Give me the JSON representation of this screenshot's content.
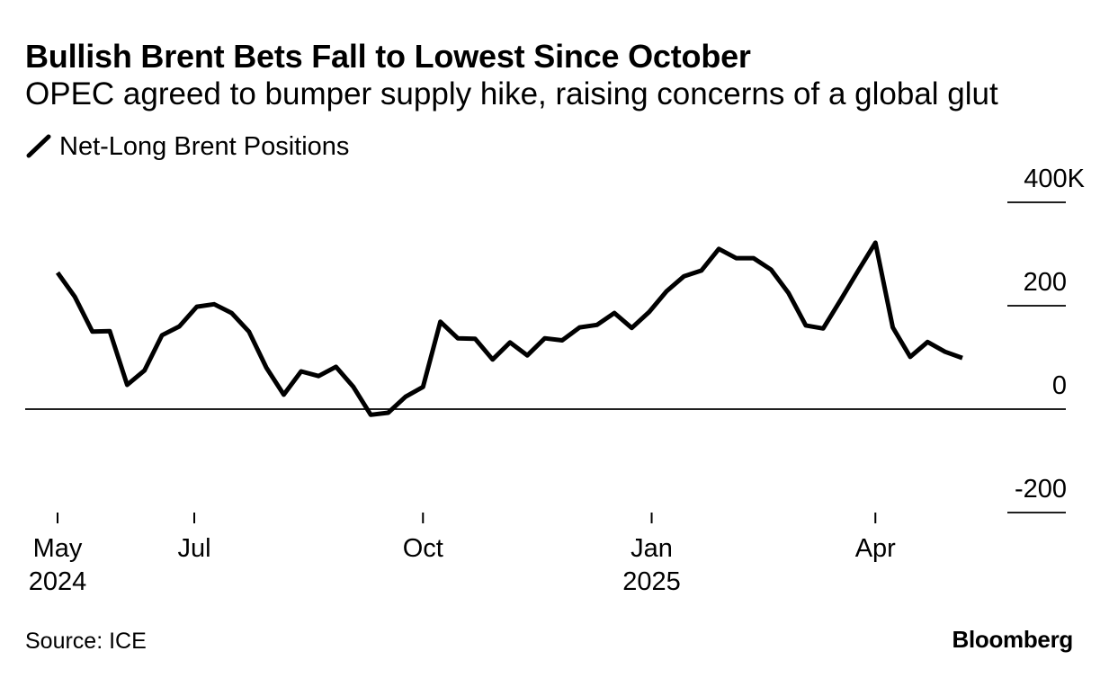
{
  "colors": {
    "background": "#ffffff",
    "text": "#000000",
    "axis": "#000000"
  },
  "footer": {
    "brand": "Bloomberg"
  },
  "chart_data": {
    "type": "line",
    "title": "Bullish Brent Bets Fall to Lowest Since October",
    "subtitle": "OPEC agreed to bumper supply hike, raising concerns of a global glut",
    "source": "Source: ICE",
    "xlabel": "",
    "ylabel": "",
    "legend_position": "top-left",
    "grid": true,
    "ylim": [
      -200,
      400
    ],
    "yticks": [
      {
        "value": 400,
        "label": "400K"
      },
      {
        "value": 200,
        "label": "200"
      },
      {
        "value": 0,
        "label": "0"
      },
      {
        "value": -200,
        "label": "-200"
      }
    ],
    "xlim": [
      "2024-05-07",
      "2025-05-06"
    ],
    "xticks": [
      {
        "date": "2024-05-07",
        "label": "May",
        "year": "2024"
      },
      {
        "date": "2024-07-01",
        "label": "Jul"
      },
      {
        "date": "2024-10-01",
        "label": "Oct"
      },
      {
        "date": "2025-01-01",
        "label": "Jan",
        "year": "2025"
      },
      {
        "date": "2025-04-01",
        "label": "Apr"
      }
    ],
    "x": [
      "2024-05-07",
      "2024-05-14",
      "2024-05-21",
      "2024-05-28",
      "2024-06-04",
      "2024-06-11",
      "2024-06-18",
      "2024-06-25",
      "2024-07-02",
      "2024-07-09",
      "2024-07-16",
      "2024-07-23",
      "2024-07-30",
      "2024-08-06",
      "2024-08-13",
      "2024-08-20",
      "2024-08-27",
      "2024-09-03",
      "2024-09-10",
      "2024-09-17",
      "2024-09-24",
      "2024-10-01",
      "2024-10-08",
      "2024-10-15",
      "2024-10-22",
      "2024-10-29",
      "2024-11-05",
      "2024-11-12",
      "2024-11-19",
      "2024-11-26",
      "2024-12-03",
      "2024-12-10",
      "2024-12-17",
      "2024-12-24",
      "2024-12-31",
      "2025-01-07",
      "2025-01-14",
      "2025-01-21",
      "2025-01-28",
      "2025-02-04",
      "2025-02-11",
      "2025-02-18",
      "2025-02-25",
      "2025-03-04",
      "2025-03-11",
      "2025-03-18",
      "2025-03-25",
      "2025-04-01",
      "2025-04-08",
      "2025-04-15",
      "2025-04-22",
      "2025-04-29",
      "2025-05-06"
    ],
    "series": [
      {
        "name": "Net-Long Brent Positions",
        "color": "#000000",
        "icon": "slash-line-icon",
        "values": [
          264,
          217,
          150,
          151,
          47,
          75,
          143,
          160,
          198,
          203,
          186,
          150,
          80,
          28,
          73,
          64,
          82,
          43,
          -11,
          -7,
          24,
          43,
          169,
          137,
          136,
          96,
          129,
          104,
          137,
          133,
          158,
          163,
          186,
          157,
          188,
          228,
          257,
          268,
          310,
          292,
          292,
          270,
          225,
          162,
          156,
          211,
          267,
          322,
          158,
          101,
          130,
          111,
          99
        ]
      }
    ]
  }
}
